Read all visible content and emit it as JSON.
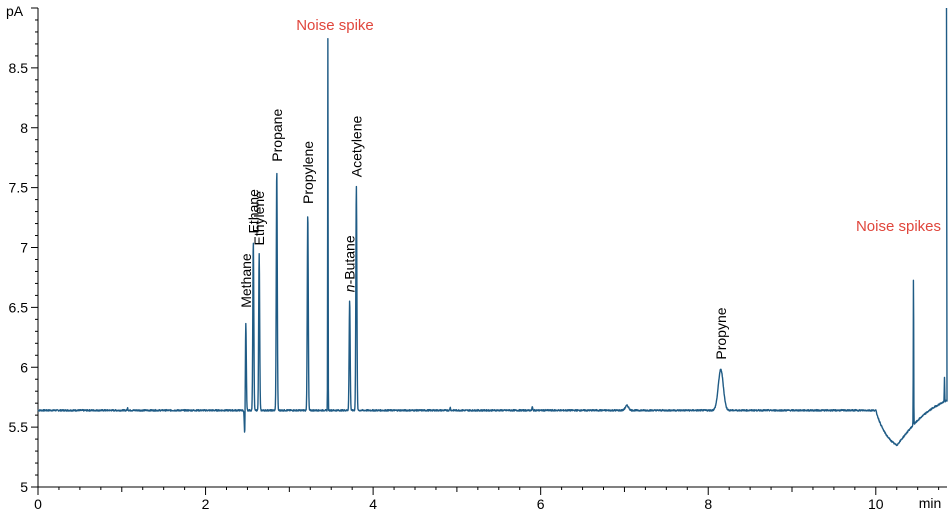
{
  "chart_data": {
    "type": "line",
    "title": "",
    "xlabel": "",
    "ylabel": "",
    "x_unit": "min",
    "y_unit": "pA",
    "xlim": [
      0,
      10.85
    ],
    "ylim": [
      5,
      9.0
    ],
    "x_ticks": [
      0,
      2,
      4,
      6,
      8,
      10
    ],
    "x_tick_labels": [
      "0",
      "2",
      "4",
      "6",
      "8",
      "10"
    ],
    "y_ticks": [
      5,
      5.5,
      6,
      6.5,
      7,
      7.5,
      8,
      8.5
    ],
    "y_tick_labels": [
      "5",
      "5.5",
      "6",
      "6.5",
      "7",
      "7.5",
      "8",
      "8.5"
    ],
    "grid": false,
    "line_color": "#1f5b85",
    "annotation_color": "#e0463c",
    "baseline": 5.64,
    "peaks": [
      {
        "name": "Methane",
        "x": 2.48,
        "y": 6.43
      },
      {
        "name": "Ethane",
        "x": 2.57,
        "y": 7.05
      },
      {
        "name": "Ethylene",
        "x": 2.64,
        "y": 6.95
      },
      {
        "name": "Propane",
        "x": 2.85,
        "y": 7.65
      },
      {
        "name": "Propylene",
        "x": 3.22,
        "y": 7.28
      },
      {
        "name": "n-Butane",
        "x": 3.72,
        "y": 6.56
      },
      {
        "name": "Acetylene",
        "x": 3.8,
        "y": 7.52
      },
      {
        "name": "Propyne",
        "x": 8.15,
        "y": 5.98
      }
    ],
    "noise_spikes": [
      {
        "x": 3.46,
        "y": 8.75
      },
      {
        "x": 10.45,
        "y": 6.92
      },
      {
        "x": 10.82,
        "y": 5.84
      },
      {
        "x": 10.85,
        "y": 9.0
      }
    ],
    "annotations": [
      {
        "text": "Noise spike"
      },
      {
        "text": "Noise spikes"
      }
    ]
  }
}
